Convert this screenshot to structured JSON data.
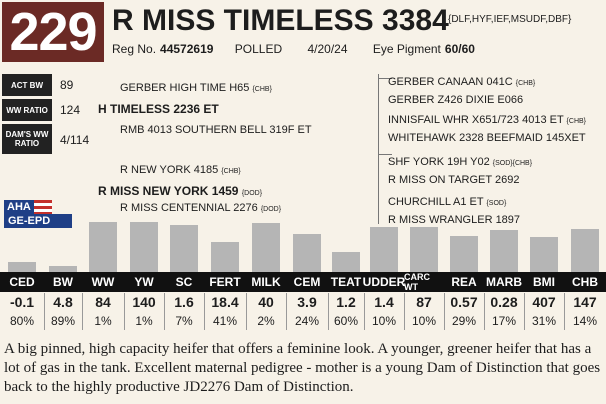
{
  "header": {
    "lot_number": "229",
    "name": "R MISS TIMELESS 3384",
    "name_suffix": "{DLF,HYF,IEF,MSUDF,DBF}",
    "reg_label": "Reg No.",
    "reg_number": "44572619",
    "polled": "POLLED",
    "birth_date": "4/20/24",
    "eye_pigment_label": "Eye Pigment",
    "eye_pigment_value": "60/60"
  },
  "stats": [
    {
      "label": "ACT BW",
      "value": "89"
    },
    {
      "label": "WW RATIO",
      "value": "124"
    },
    {
      "label": "DAM'S WW RATIO",
      "value": "4/114"
    }
  ],
  "pedigree": {
    "sire_sire": "GERBER HIGH TIME H65",
    "sire_sire_sfx": "{CHB}",
    "sire": "H TIMELESS 2236 ET",
    "sire_dam": "RMB 4013 SOUTHERN BELL 319F ET",
    "dam_sire": "R NEW YORK 4185",
    "dam_sire_sfx": "{CHB}",
    "dam": "R MISS NEW YORK 1459",
    "dam_sfx": "{DOD}",
    "dam_dam": "R MISS CENTENNIAL 2276",
    "dam_dam_sfx": "{DOD}",
    "ext": [
      {
        "text": "GERBER CANAAN 041C",
        "sfx": "{CHB}"
      },
      {
        "text": "GERBER Z426 DIXIE E066",
        "sfx": ""
      },
      {
        "text": "INNISFAIL WHR X651/723 4013 ET",
        "sfx": "{CHB}"
      },
      {
        "text": "WHITEHAWK 2328 BEEFMAID 145XET",
        "sfx": ""
      },
      {
        "text": "SHF YORK 19H Y02",
        "sfx": "{SOD}{CHB}"
      },
      {
        "text": "R MISS ON TARGET 2692",
        "sfx": ""
      },
      {
        "text": "CHURCHILL A1 ET",
        "sfx": "{SOD}"
      },
      {
        "text": "R MISS WRANGLER 1897",
        "sfx": ""
      }
    ]
  },
  "logo": {
    "top": "AHA",
    "bottom": "GE-EPD"
  },
  "epd": {
    "traits": [
      "CED",
      "BW",
      "WW",
      "YW",
      "SC",
      "FERT",
      "MILK",
      "CEM",
      "TEAT",
      "UDDER",
      "CARC WT",
      "REA",
      "MARB",
      "BMI",
      "CHB"
    ],
    "values": [
      "-0.1",
      "4.8",
      "84",
      "140",
      "1.6",
      "18.4",
      "40",
      "3.9",
      "1.2",
      "1.4",
      "87",
      "0.57",
      "0.28",
      "407",
      "147"
    ],
    "percentiles": [
      "80%",
      "89%",
      "1%",
      "1%",
      "7%",
      "41%",
      "2%",
      "24%",
      "60%",
      "10%",
      "10%",
      "29%",
      "17%",
      "31%",
      "14%"
    ],
    "bar_heights": [
      0.2,
      0.11,
      0.99,
      0.99,
      0.93,
      0.59,
      0.98,
      0.76,
      0.4,
      0.9,
      0.9,
      0.71,
      0.83,
      0.69,
      0.86
    ]
  },
  "description": "A big pinned, high capacity heifer that offers a feminine look. A younger, greener heifer that has a lot of gas in the tank. Excellent maternal pedigree - mother is a young Dam of Distinction that goes back to the highly productive JD2276 Dam of Distinction."
}
